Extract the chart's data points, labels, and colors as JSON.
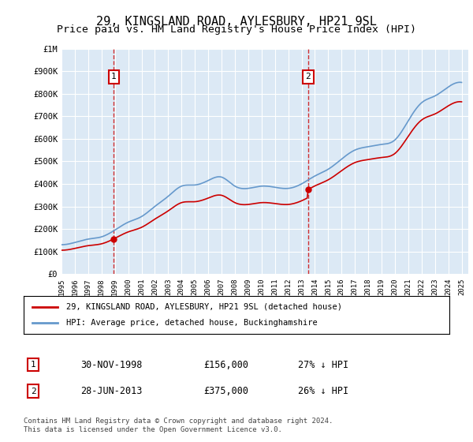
{
  "title": "29, KINGSLAND ROAD, AYLESBURY, HP21 9SL",
  "subtitle": "Price paid vs. HM Land Registry's House Price Index (HPI)",
  "title_fontsize": 11,
  "subtitle_fontsize": 9.5,
  "background_color": "#ffffff",
  "plot_bg_color": "#dce9f5",
  "grid_color": "#ffffff",
  "sales": [
    {
      "date_num": 1998.92,
      "price": 156000,
      "label": "1"
    },
    {
      "date_num": 2013.49,
      "price": 375000,
      "label": "2"
    }
  ],
  "sale_line_color": "#cc0000",
  "hpi_line_color": "#6699cc",
  "marker_box_color": "#cc0000",
  "ylim": [
    0,
    1000000
  ],
  "xlim": [
    1995.0,
    2025.5
  ],
  "legend_label_red": "29, KINGSLAND ROAD, AYLESBURY, HP21 9SL (detached house)",
  "legend_label_blue": "HPI: Average price, detached house, Buckinghamshire",
  "annotation_1_num": "1",
  "annotation_1_date": "30-NOV-1998",
  "annotation_1_price": "£156,000",
  "annotation_1_hpi": "27% ↓ HPI",
  "annotation_2_num": "2",
  "annotation_2_date": "28-JUN-2013",
  "annotation_2_price": "£375,000",
  "annotation_2_hpi": "26% ↓ HPI",
  "footer": "Contains HM Land Registry data © Crown copyright and database right 2024.\nThis data is licensed under the Open Government Licence v3.0.",
  "yticks": [
    0,
    100000,
    200000,
    300000,
    400000,
    500000,
    600000,
    700000,
    800000,
    900000,
    1000000
  ],
  "ytick_labels": [
    "£0",
    "£100K",
    "£200K",
    "£300K",
    "£400K",
    "£500K",
    "£600K",
    "£700K",
    "£800K",
    "£900K",
    "£1M"
  ]
}
